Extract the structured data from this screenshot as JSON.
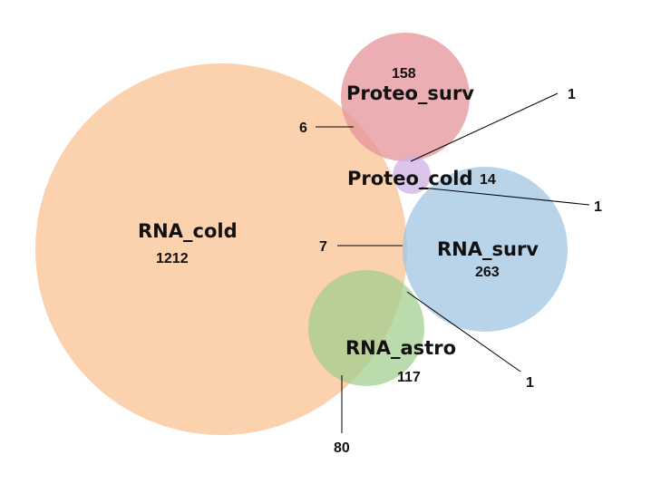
{
  "diagram": {
    "type": "euler-venn",
    "sets": [
      {
        "id": "rna_cold",
        "label": "RNA_cold",
        "count": "1212",
        "color": "#fcc9a0"
      },
      {
        "id": "proteo_surv",
        "label": "Proteo_surv",
        "count": "158",
        "color": "#e49399"
      },
      {
        "id": "proteo_cold",
        "label": "Proteo_cold",
        "count": "14",
        "color": "#cfb1e3"
      },
      {
        "id": "rna_surv",
        "label": "RNA_surv",
        "count": "263",
        "color": "#a2c4e2"
      },
      {
        "id": "rna_astro",
        "label": "RNA_astro",
        "count": "117",
        "color": "#9fcf8d"
      }
    ],
    "overlaps": [
      {
        "id": "rnacold_proteosurv",
        "count": "6"
      },
      {
        "id": "proteosurv_proteocold",
        "count": "1"
      },
      {
        "id": "proteocold_rnasurv",
        "count": "1"
      },
      {
        "id": "rnacold_rnasurv",
        "count": "7"
      },
      {
        "id": "rnasurv_rnaastro",
        "count": "1"
      },
      {
        "id": "rnacold_rnaastro",
        "count": "80"
      }
    ]
  }
}
